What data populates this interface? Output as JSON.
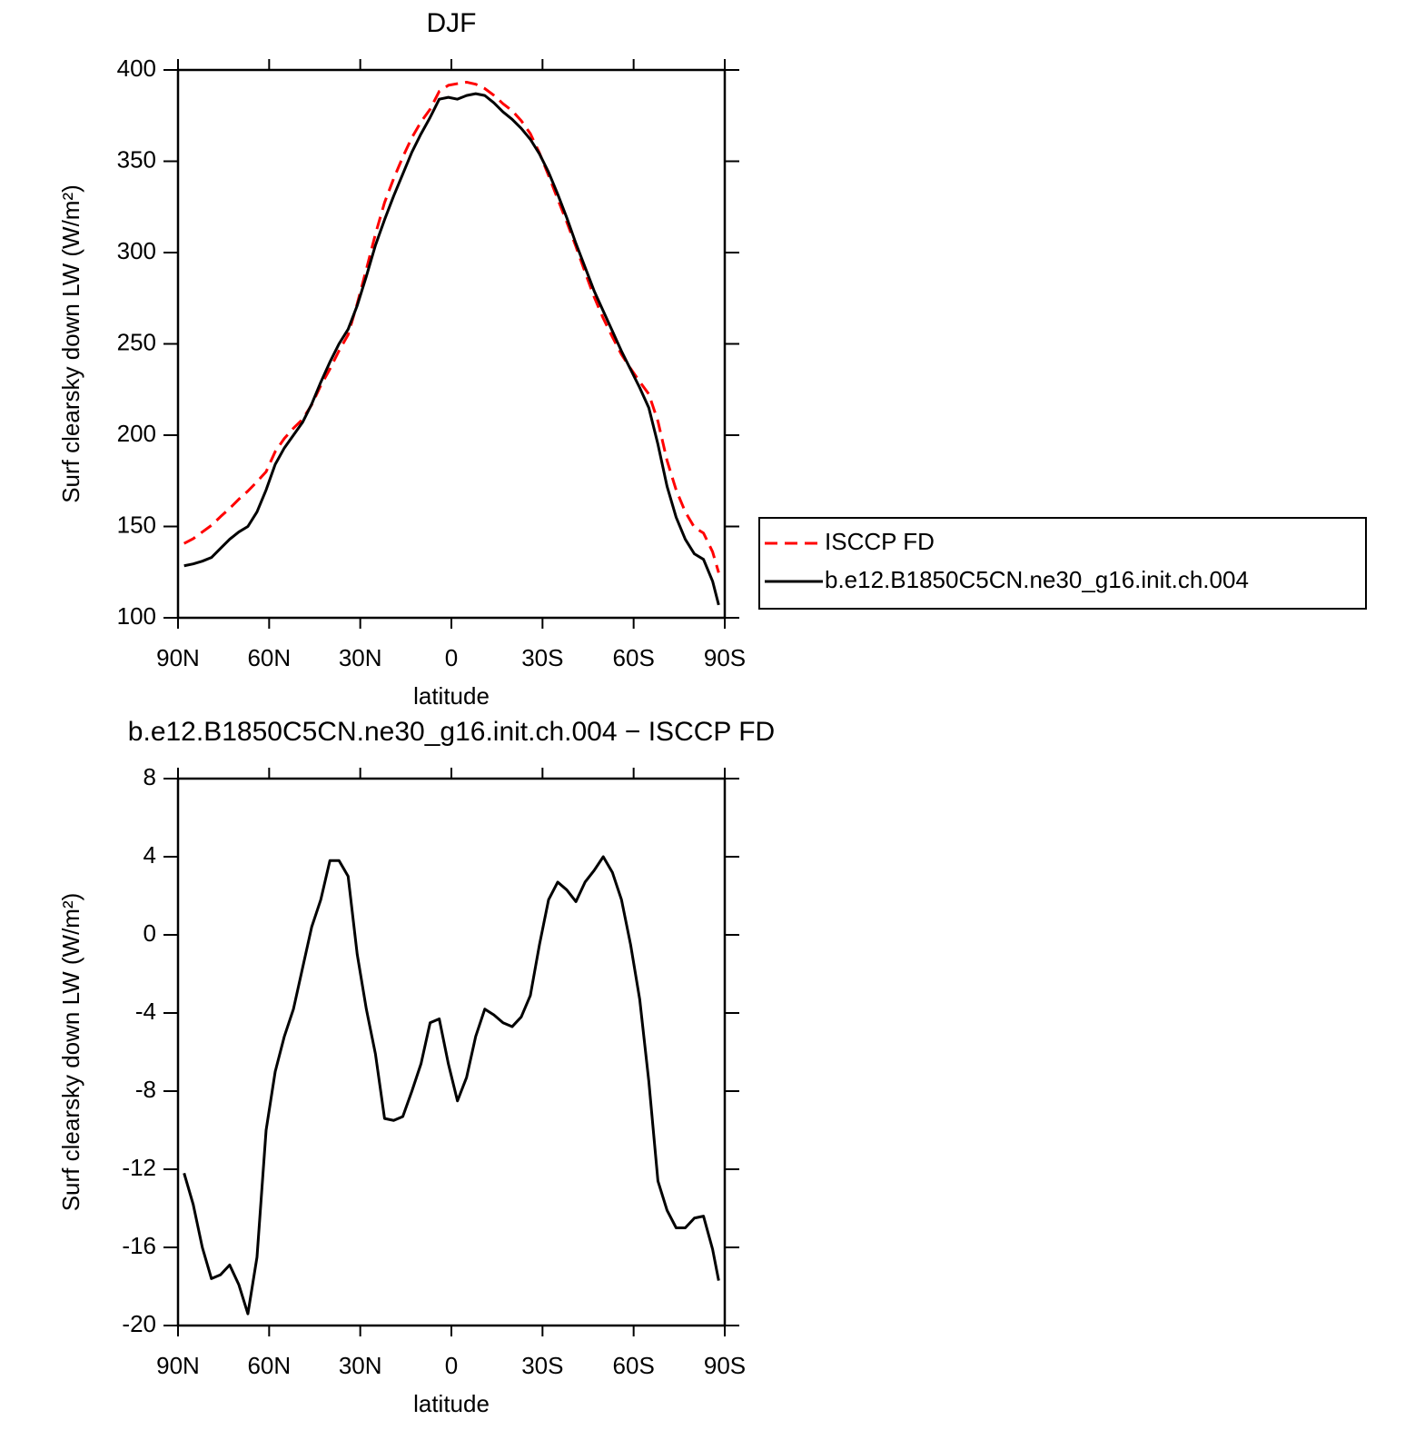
{
  "chart_data": [
    {
      "type": "line",
      "title": "DJF",
      "xlabel": "latitude",
      "ylabel": "Surf clearsky down LW (W/m²)",
      "x": [
        88,
        85,
        82,
        79,
        76,
        73,
        70,
        67,
        64,
        61,
        58,
        55,
        52,
        49,
        46,
        43,
        40,
        37,
        34,
        31,
        28,
        25,
        22,
        19,
        16,
        13,
        10,
        7,
        4,
        1,
        -2,
        -5,
        -8,
        -11,
        -14,
        -17,
        -20,
        -23,
        -26,
        -29,
        -32,
        -35,
        -38,
        -41,
        -44,
        -47,
        -50,
        -53,
        -56,
        -59,
        -62,
        -65,
        -68,
        -71,
        -74,
        -77,
        -80,
        -83,
        -86,
        -88
      ],
      "xlim": [
        90,
        -90
      ],
      "xticks": [
        {
          "value": 90,
          "label": "90N"
        },
        {
          "value": 60,
          "label": "60N"
        },
        {
          "value": 30,
          "label": "30N"
        },
        0,
        {
          "value": -30,
          "label": "30S"
        },
        {
          "value": -60,
          "label": "60S"
        },
        {
          "value": -90,
          "label": "90S"
        }
      ],
      "ylim": [
        100,
        400
      ],
      "yticks": [
        100,
        150,
        200,
        250,
        300,
        350,
        400
      ],
      "legend": "right",
      "series": [
        {
          "name": "ISCCP FD",
          "color": "#ff0000",
          "dashed": true,
          "values": [
            140.7,
            143.3,
            147,
            150.6,
            155.4,
            159.9,
            164.9,
            169.4,
            174.5,
            180,
            191,
            198.2,
            203.8,
            208.7,
            216.6,
            227.2,
            236.2,
            246.2,
            255,
            272,
            290.8,
            310.1,
            327.4,
            340.5,
            352.3,
            363,
            371.6,
            378.5,
            388.3,
            391.6,
            392.5,
            393.3,
            392.2,
            389.8,
            386.1,
            381.5,
            377.7,
            372.2,
            365.1,
            354.5,
            342.2,
            329.3,
            316.7,
            303.3,
            289.3,
            275.7,
            264,
            253.8,
            244.2,
            236.5,
            229.3,
            222.5,
            207.6,
            186.1,
            170,
            158,
            149.5,
            146.4,
            136.1,
            124.7
          ]
        },
        {
          "name": "b.e12.B1850C5CN.ne30_g16.init.ch.004",
          "color": "#000000",
          "dashed": false,
          "values": [
            128.5,
            129.5,
            131,
            133,
            138,
            143,
            147,
            150,
            158,
            170,
            184,
            193,
            200,
            207,
            217,
            229,
            240,
            250,
            258,
            271,
            287,
            304,
            318,
            331,
            343,
            355,
            365,
            374,
            384,
            385,
            384,
            386,
            387,
            386,
            382,
            377,
            373,
            368,
            362,
            354,
            344,
            332,
            319,
            305,
            292,
            279,
            268,
            257,
            246,
            236,
            226,
            215,
            195,
            172,
            155,
            143,
            135,
            132,
            120,
            107
          ]
        }
      ]
    },
    {
      "type": "line",
      "title": "b.e12.B1850C5CN.ne30_g16.init.ch.004 − ISCCP FD",
      "xlabel": "latitude",
      "ylabel": "Surf clearsky down LW (W/m²)",
      "x": [
        88,
        85,
        82,
        79,
        76,
        73,
        70,
        67,
        64,
        61,
        58,
        55,
        52,
        49,
        46,
        43,
        40,
        37,
        34,
        31,
        28,
        25,
        22,
        19,
        16,
        13,
        10,
        7,
        4,
        1,
        -2,
        -5,
        -8,
        -11,
        -14,
        -17,
        -20,
        -23,
        -26,
        -29,
        -32,
        -35,
        -38,
        -41,
        -44,
        -47,
        -50,
        -53,
        -56,
        -59,
        -62,
        -65,
        -68,
        -71,
        -74,
        -77,
        -80,
        -83,
        -86,
        -88
      ],
      "xlim": [
        90,
        -90
      ],
      "xticks": [
        {
          "value": 90,
          "label": "90N"
        },
        {
          "value": 60,
          "label": "60N"
        },
        {
          "value": 30,
          "label": "30N"
        },
        0,
        {
          "value": -30,
          "label": "30S"
        },
        {
          "value": -60,
          "label": "60S"
        },
        {
          "value": -90,
          "label": "90S"
        }
      ],
      "ylim": [
        -20,
        8
      ],
      "yticks": [
        -20,
        -16,
        -12,
        -8,
        -4,
        0,
        4,
        8
      ],
      "color": "#000000",
      "values": [
        -12.2,
        -13.8,
        -16,
        -17.6,
        -17.4,
        -16.9,
        -17.9,
        -19.4,
        -16.5,
        -10,
        -7,
        -5.2,
        -3.8,
        -1.7,
        0.4,
        1.8,
        3.8,
        3.8,
        3,
        -1,
        -3.8,
        -6.1,
        -9.4,
        -9.5,
        -9.3,
        -8,
        -6.6,
        -4.5,
        -4.3,
        -6.6,
        -8.5,
        -7.3,
        -5.2,
        -3.8,
        -4.1,
        -4.5,
        -4.7,
        -4.2,
        -3.1,
        -0.5,
        1.8,
        2.7,
        2.3,
        1.7,
        2.7,
        3.3,
        4,
        3.2,
        1.8,
        -0.5,
        -3.3,
        -7.5,
        -12.6,
        -14.1,
        -15,
        -15,
        -14.5,
        -14.4,
        -16.1,
        -17.7
      ]
    }
  ]
}
